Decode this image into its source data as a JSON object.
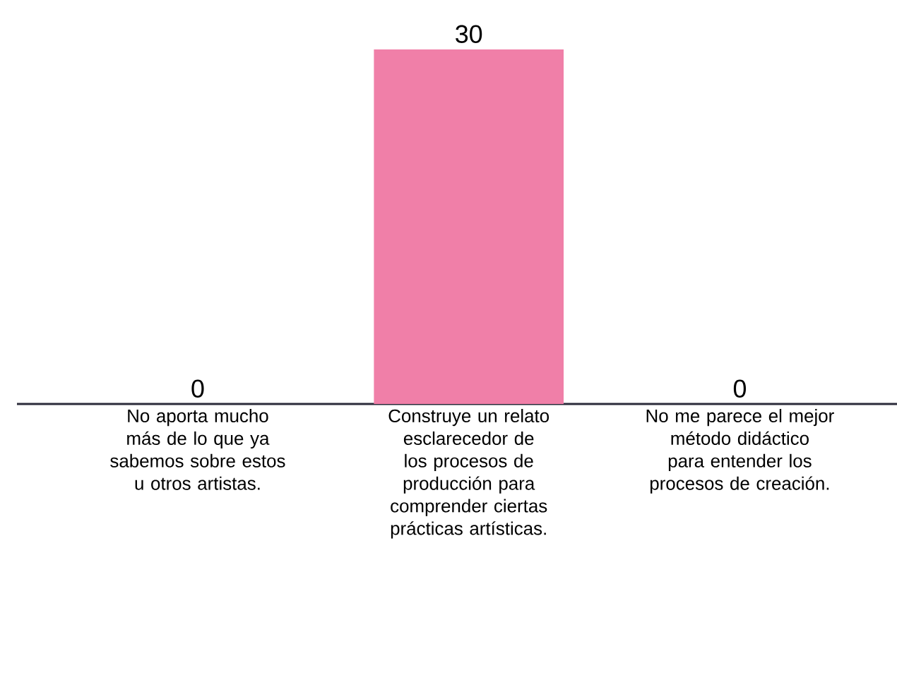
{
  "chart_data": {
    "type": "bar",
    "categories": [
      "No aporta mucho más de lo que ya sabemos sobre estos u otros artistas.",
      "Construye un relato esclarecedor de los procesos de producción para comprender ciertas prácticas artísticas.",
      "No me parece el mejor método didáctico para entender los procesos de creación."
    ],
    "values": [
      0,
      30,
      0
    ],
    "color": "#f07fa8",
    "data_labels": true,
    "tick_labels": "x"
  }
}
